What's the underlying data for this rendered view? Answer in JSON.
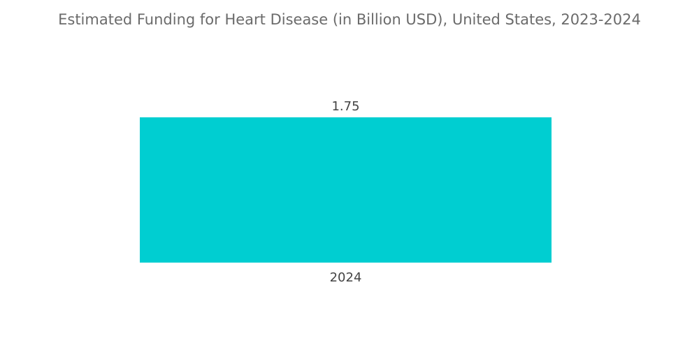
{
  "chart_data": {
    "type": "bar",
    "title": "Estimated Funding for Heart Disease (in Billion USD), United States, 2023-2024",
    "categories": [
      "2024"
    ],
    "values": [
      1.75
    ],
    "data_labels": [
      "1.75"
    ],
    "xlabel": "",
    "ylabel": "",
    "ylim": [
      0,
      1.75
    ],
    "grid": false,
    "bar_color": "#00CED1"
  }
}
